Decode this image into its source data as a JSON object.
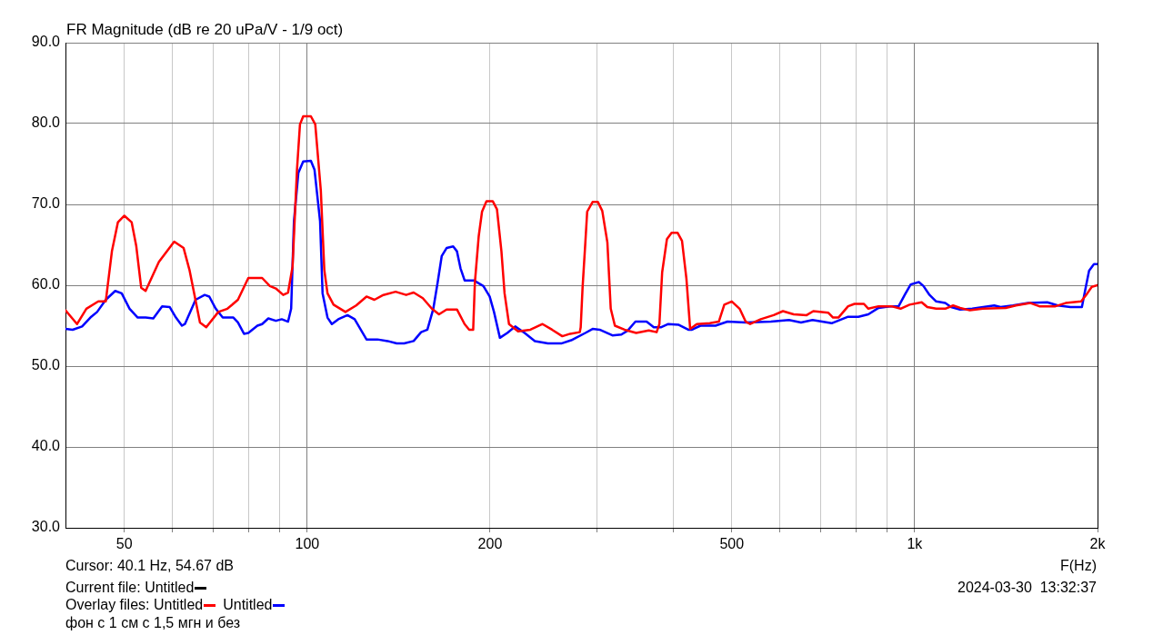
{
  "chart_data": {
    "type": "line",
    "title": "FR Magnitude (dB re 20 uPa/V - 1/9 oct)",
    "xlabel": "F(Hz)",
    "log": "x",
    "grid": true,
    "legend": "bottom left",
    "legend_title": "Overlay files:",
    "xlim": [
      40,
      2000
    ],
    "xticks": [
      {
        "value": 50,
        "label": "50"
      },
      {
        "value": 60,
        "label": null
      },
      {
        "value": 70,
        "label": null
      },
      {
        "value": 80,
        "label": null
      },
      {
        "value": 90,
        "label": null
      },
      {
        "value": 100,
        "label": "100"
      },
      {
        "value": 200,
        "label": "200"
      },
      {
        "value": 300,
        "label": null
      },
      {
        "value": 400,
        "label": null
      },
      {
        "value": 500,
        "label": "500"
      },
      {
        "value": 600,
        "label": null
      },
      {
        "value": 700,
        "label": null
      },
      {
        "value": 800,
        "label": null
      },
      {
        "value": 900,
        "label": null
      },
      {
        "value": 1000,
        "label": "1k"
      },
      {
        "value": 2000,
        "label": "2k"
      }
    ],
    "ylim": [
      30,
      90
    ],
    "yticks": [
      {
        "value": 30,
        "label": "30.0"
      },
      {
        "value": 40,
        "label": "40.0"
      },
      {
        "value": 50,
        "label": "50.0"
      },
      {
        "value": 60,
        "label": "60.0"
      },
      {
        "value": 70,
        "label": "70.0"
      },
      {
        "value": 80,
        "label": "80.0"
      },
      {
        "value": 90,
        "label": "90.0"
      }
    ],
    "annotations": [
      "Cursor: 40.1 Hz, 54.67 dB",
      "Current file: Untitled",
      "фон с 1 см с 1,5 мгн и без",
      "2024-03-30  13:32:37"
    ],
    "series": [
      {
        "name": "Untitled",
        "color": "#ff0000",
        "x": [
          40,
          41.8,
          43.3,
          45.3,
          46.6,
          47.7,
          48.8,
          50,
          51.4,
          52.3,
          53.3,
          54.2,
          57,
          60.4,
          62.6,
          64,
          66.6,
          68.2,
          71.4,
          73.9,
          76.9,
          80,
          84.3,
          86.8,
          88.8,
          91.3,
          93,
          94.6,
          96.2,
          97.3,
          98.5,
          101.4,
          103.1,
          105.3,
          106.7,
          108,
          110.5,
          115.6,
          120.4,
          125.2,
          129,
          133.5,
          139.8,
          145.5,
          149.7,
          155,
          160.4,
          164.8,
          169.6,
          176.4,
          181.6,
          184.8,
          187.6,
          188.8,
          191.6,
          194,
          197.3,
          202,
          205.3,
          208.8,
          211.3,
          214.9,
          222.4,
          233,
          244,
          253,
          263,
          271,
          281,
          282,
          284,
          287,
          289,
          295,
          301,
          306,
          312,
          316,
          321,
          333,
          348,
          365,
          376,
          380,
          384,
          391,
          398,
          407,
          414,
          421,
          427,
          438,
          460,
          476,
          486,
          500,
          515,
          527,
          536,
          558,
          586,
          607,
          632,
          664,
          681,
          721,
          734,
          749,
          777,
          796,
          825,
          839,
          872,
          916,
          948,
          981,
          1027,
          1049,
          1085,
          1123,
          1157,
          1188,
          1233,
          1295,
          1412,
          1468,
          1551,
          1604,
          1705,
          1772,
          1880,
          1924,
          1957,
          2000
        ],
        "values": [
          56.9,
          55.2,
          57.1,
          58.0,
          58.0,
          64.2,
          67.8,
          68.6,
          67.8,
          64.9,
          59.7,
          59.3,
          62.9,
          65.4,
          64.6,
          61.9,
          55.4,
          54.8,
          56.7,
          57.1,
          58.2,
          60.9,
          60.9,
          59.9,
          59.6,
          58.8,
          59.1,
          62.3,
          74.3,
          79.9,
          80.9,
          80.9,
          79.9,
          71.7,
          61.9,
          59.0,
          57.6,
          56.7,
          57.5,
          58.6,
          58.2,
          58.8,
          59.2,
          58.8,
          59.1,
          58.4,
          57.1,
          56.4,
          57.0,
          57.0,
          55.2,
          54.5,
          54.5,
          60.3,
          66.1,
          69.1,
          70.4,
          70.4,
          69.4,
          64.2,
          59.0,
          55.2,
          54.3,
          54.5,
          55.2,
          54.5,
          53.7,
          54.0,
          54.2,
          54.8,
          59.7,
          65.3,
          69.1,
          70.3,
          70.3,
          69.2,
          65.3,
          57.1,
          55.0,
          54.5,
          54.1,
          54.4,
          54.2,
          55.2,
          61.6,
          65.7,
          66.5,
          66.5,
          65.5,
          60.8,
          54.6,
          55.2,
          55.3,
          55.5,
          57.6,
          58.0,
          57.1,
          55.5,
          55.2,
          55.8,
          56.3,
          56.8,
          56.4,
          56.3,
          56.8,
          56.6,
          56.0,
          56.0,
          57.4,
          57.7,
          57.7,
          57.1,
          57.4,
          57.4,
          57.1,
          57.6,
          57.9,
          57.3,
          57.1,
          57.1,
          57.5,
          57.2,
          56.9,
          57.1,
          57.2,
          57.5,
          57.8,
          57.4,
          57.4,
          57.8,
          58.0,
          59.0,
          59.8,
          60.0
        ]
      },
      {
        "name": "Untitled",
        "color": "#0000ff",
        "x": [
          40,
          41.1,
          42.6,
          44.1,
          45.1,
          46.6,
          48.3,
          49.5,
          51,
          52.6,
          54.2,
          55.8,
          57.7,
          59.4,
          60.8,
          62.2,
          62.9,
          65.5,
          67.8,
          69,
          70.7,
          72.6,
          75.6,
          76.9,
          78.7,
          80,
          82.8,
          84.3,
          86.3,
          88.8,
          90.8,
          93,
          94.1,
          95.1,
          96.7,
          98.5,
          101.4,
          102.8,
          105,
          106,
          108,
          109.8,
          112.5,
          116.5,
          119.7,
          125.2,
          130.5,
          135.6,
          140.4,
          144.4,
          149.7,
          154,
          157.7,
          161.3,
          164,
          166.5,
          169.6,
          173.9,
          176.4,
          178.8,
          181.6,
          188,
          195,
          199.7,
          203,
          207.6,
          213.5,
          220,
          228,
          237,
          249,
          262,
          272,
          277,
          287,
          295,
          303,
          318,
          329,
          337,
          347,
          362,
          372,
          382,
          393,
          409,
          424,
          430,
          444,
          470,
          492,
          527,
          580,
          621,
          650,
          679,
          730,
          777,
          808,
          839,
          872,
          910,
          941,
          963,
          985,
          1016,
          1034,
          1058,
          1085,
          1123,
          1148,
          1188,
          1244,
          1352,
          1385,
          1451,
          1537,
          1653,
          1720,
          1805,
          1885,
          1912,
          1937,
          1973,
          2000
        ],
        "values": [
          54.6,
          54.5,
          54.9,
          56.1,
          56.7,
          58.2,
          59.3,
          59.0,
          57.1,
          56.0,
          56.0,
          55.9,
          57.4,
          57.3,
          56.0,
          55.0,
          55.2,
          58.2,
          58.8,
          58.6,
          57.1,
          56.0,
          56.0,
          55.4,
          54.0,
          54.1,
          55.0,
          55.2,
          55.9,
          55.6,
          55.8,
          55.5,
          57.1,
          67.9,
          73.9,
          75.3,
          75.4,
          74.3,
          67.9,
          59.0,
          56.0,
          55.2,
          55.8,
          56.3,
          55.8,
          53.3,
          53.3,
          53.1,
          52.8,
          52.8,
          53.1,
          54.2,
          54.5,
          57.1,
          60.4,
          63.6,
          64.6,
          64.8,
          64.2,
          62.1,
          60.6,
          60.6,
          59.9,
          58.6,
          56.7,
          53.5,
          54.1,
          54.9,
          54.1,
          53.1,
          52.8,
          52.8,
          53.2,
          53.5,
          54.1,
          54.6,
          54.5,
          53.8,
          53.9,
          54.4,
          55.5,
          55.5,
          54.8,
          54.8,
          55.2,
          55.1,
          54.5,
          54.5,
          55.0,
          55.0,
          55.5,
          55.4,
          55.5,
          55.7,
          55.4,
          55.7,
          55.3,
          56.1,
          56.1,
          56.4,
          57.2,
          57.4,
          57.4,
          58.8,
          60.1,
          60.4,
          59.9,
          58.8,
          58.0,
          57.8,
          57.3,
          57.0,
          57.1,
          57.5,
          57.3,
          57.5,
          57.8,
          57.9,
          57.5,
          57.3,
          57.3,
          59.7,
          61.8,
          62.6,
          62.6
        ]
      }
    ]
  }
}
